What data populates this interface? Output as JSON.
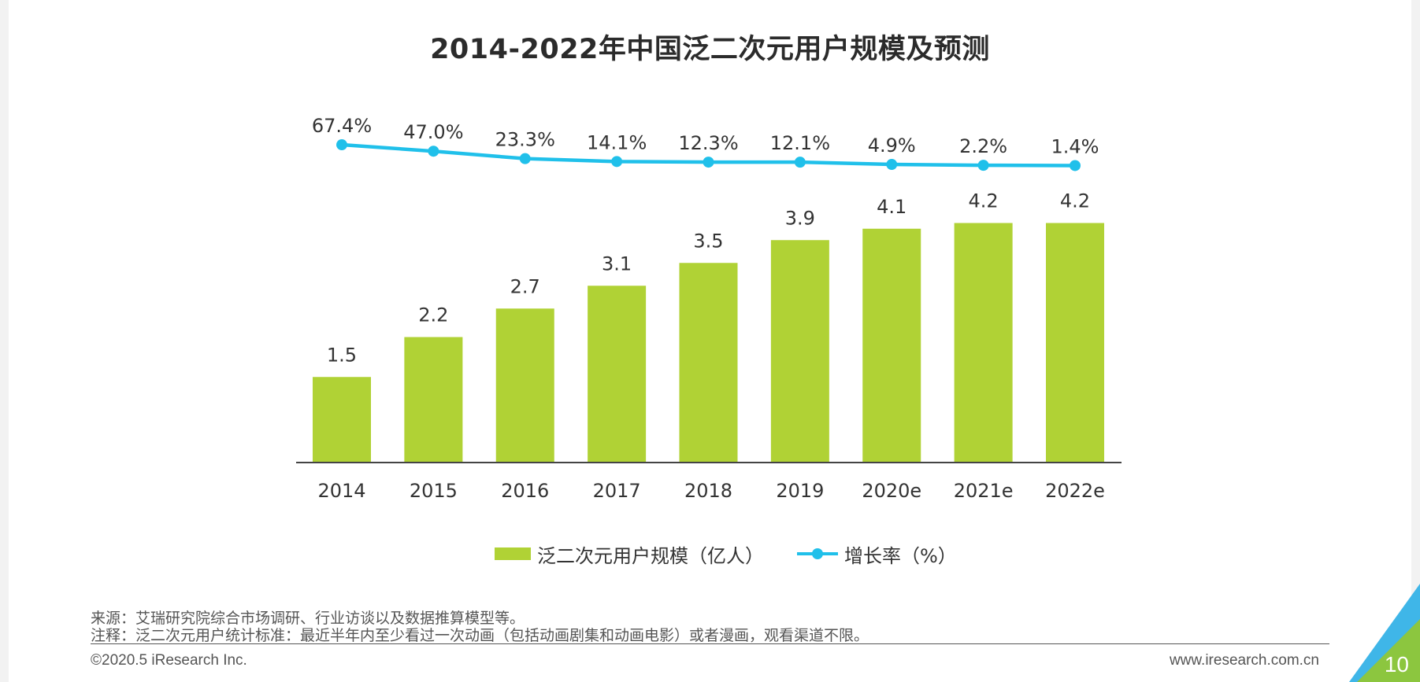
{
  "page": {
    "title": "2014-2022年中国泛二次元用户规模及预测",
    "source_note": "来源：艾瑞研究院综合市场调研、行业访谈以及数据推算模型等。",
    "definition_note": "注释：泛二次元用户统计标准：最近半年内至少看过一次动画（包括动画剧集和动画电影）或者漫画，观看渠道不限。",
    "copyright": "©2020.5 iResearch Inc.",
    "website": "www.iresearch.com.cn",
    "page_number": "10"
  },
  "colors": {
    "bar": "#b0d235",
    "line": "#20c0ea",
    "corner_blue": "#3fb6e8",
    "corner_green": "#8cc63f"
  },
  "chart_data": {
    "type": "bar",
    "title": "2014-2022年中国泛二次元用户规模及预测",
    "categories": [
      "2014",
      "2015",
      "2016",
      "2017",
      "2018",
      "2019",
      "2020e",
      "2021e",
      "2022e"
    ],
    "series": [
      {
        "name": "泛二次元用户规模（亿人）",
        "type": "bar",
        "values": [
          1.5,
          2.2,
          2.7,
          3.1,
          3.5,
          3.9,
          4.1,
          4.2,
          4.2
        ],
        "labels": [
          "1.5",
          "2.2",
          "2.7",
          "3.1",
          "3.5",
          "3.9",
          "4.1",
          "4.2",
          "4.2"
        ]
      },
      {
        "name": "增长率（%）",
        "type": "line",
        "values": [
          67.4,
          47.0,
          23.3,
          14.1,
          12.3,
          12.1,
          4.9,
          2.2,
          1.4
        ],
        "labels": [
          "67.4%",
          "47.0%",
          "23.3%",
          "14.1%",
          "12.3%",
          "12.1%",
          "4.9%",
          "2.2%",
          "1.4%"
        ]
      }
    ],
    "xlabel": "",
    "ylabel": "",
    "y_axis_visible": false,
    "grid": false,
    "legend_position": "bottom"
  }
}
